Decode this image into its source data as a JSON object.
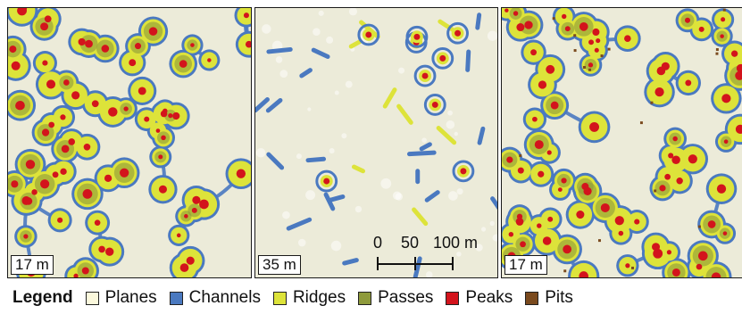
{
  "panels": [
    {
      "resolution_label": "17 m"
    },
    {
      "resolution_label": "35 m"
    },
    {
      "resolution_label": "17 m"
    }
  ],
  "scale_bar": {
    "ticks": [
      "0",
      "50",
      "100 m"
    ]
  },
  "legend": {
    "title": "Legend",
    "items": [
      {
        "label": "Planes",
        "color": "#fbf8dc"
      },
      {
        "label": "Channels",
        "color": "#4a79c0"
      },
      {
        "label": "Ridges",
        "color": "#dde33a"
      },
      {
        "label": "Passes",
        "color": "#8e9a3b"
      },
      {
        "label": "Peaks",
        "color": "#d3141c"
      },
      {
        "label": "Pits",
        "color": "#7a4a1e"
      }
    ]
  },
  "colors": {
    "background": "#ecebd9",
    "channels": "#4a79c0",
    "ridges": "#dde33a",
    "passes": "#8e9a3b",
    "peaks": "#d3141c",
    "pits": "#7a4a1e"
  }
}
